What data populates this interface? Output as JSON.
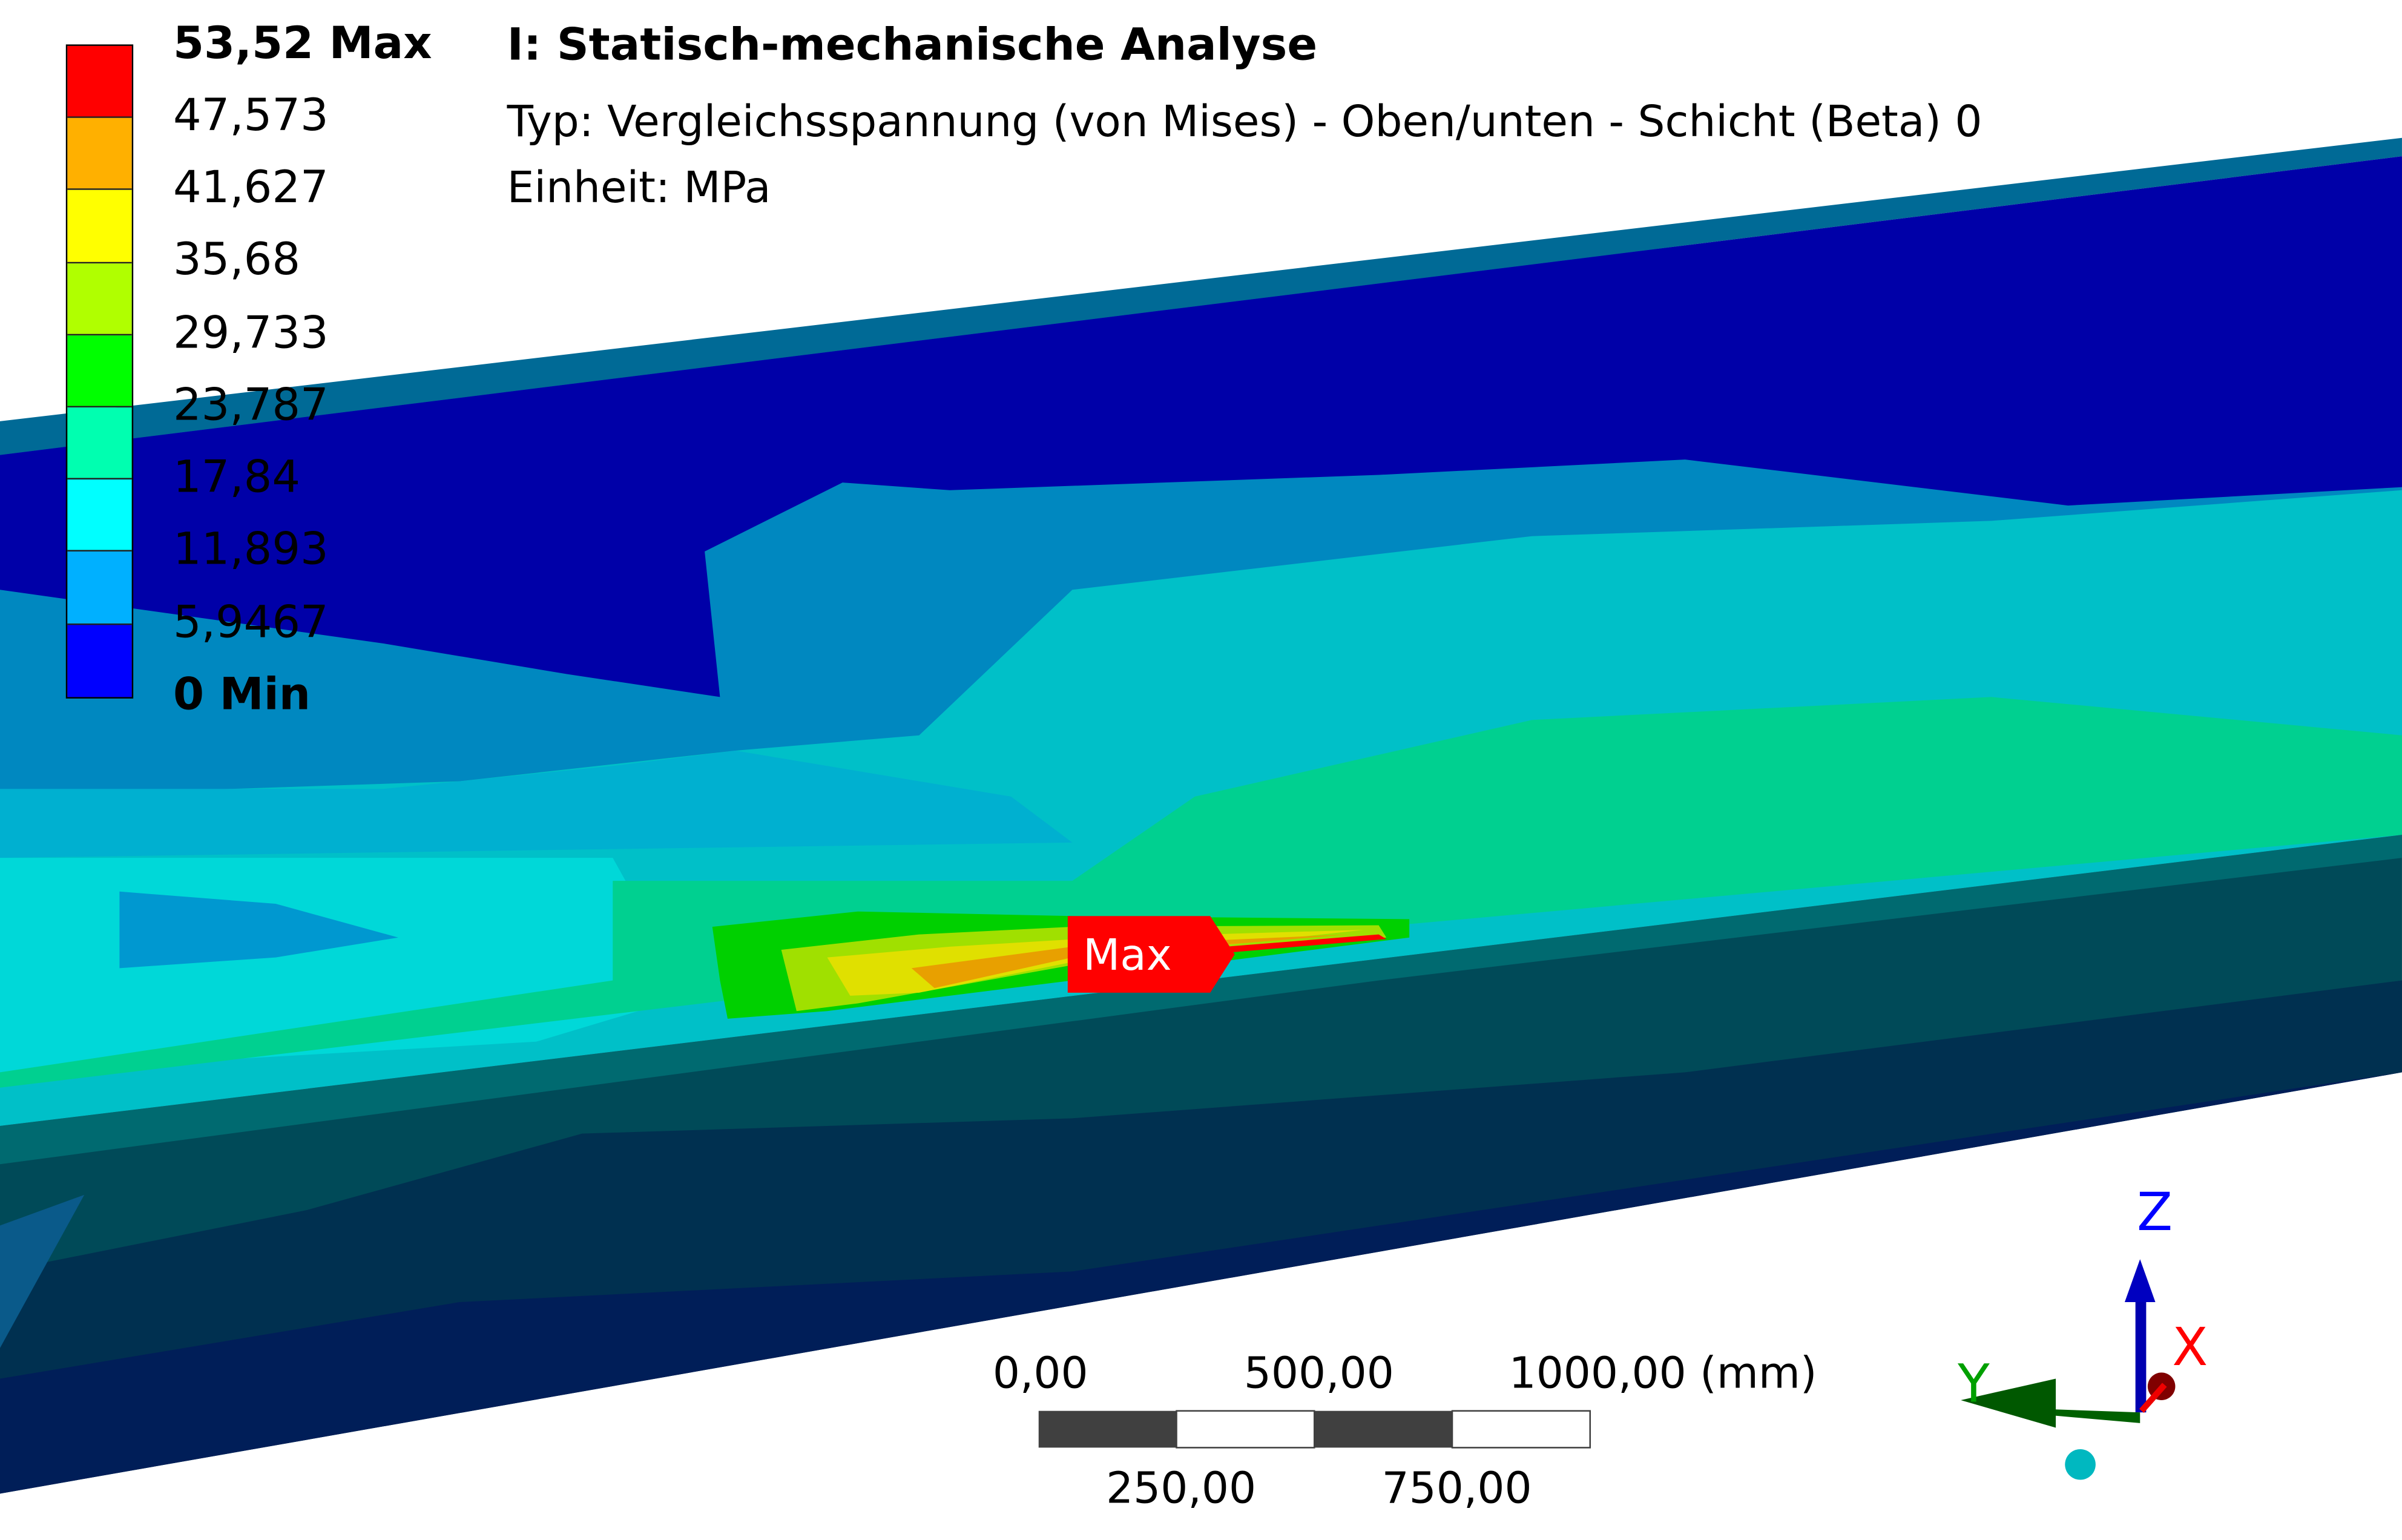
{
  "header": {
    "title": "I: Statisch-mechanische Analyse",
    "type_line": "Typ: Vergleichsspannung (von Mises) - Oben/unten - Schicht (Beta) 0",
    "unit_line": "Einheit: MPa"
  },
  "legend": {
    "max_label": "53,52 Max",
    "min_label": "0 Min",
    "levels": [
      "47,573",
      "41,627",
      "35,68",
      "29,733",
      "23,787",
      "17,84",
      "11,893",
      "5,9467"
    ],
    "colors": [
      "#ff0000",
      "#ffb000",
      "#ffff00",
      "#b0ff00",
      "#00ff00",
      "#00ffb0",
      "#00ffff",
      "#00b0ff",
      "#0000ff"
    ]
  },
  "probe": {
    "label": "Max",
    "color": "#ff0000"
  },
  "scale_bar": {
    "top_labels": [
      "0,00",
      "500,00",
      "1000,00 (mm)"
    ],
    "bottom_labels": [
      "250,00",
      "750,00"
    ]
  },
  "triad": {
    "x": {
      "label": "X",
      "color": "#ff0000"
    },
    "y": {
      "label": "Y",
      "color": "#00a000"
    },
    "z": {
      "label": "Z",
      "color": "#0000ff"
    }
  }
}
